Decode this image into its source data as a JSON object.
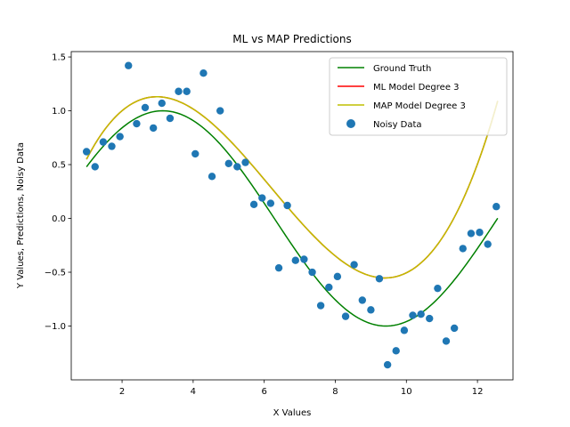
{
  "chart_data": {
    "type": "scatter",
    "title": "ML vs MAP Predictions",
    "xlabel": "X Values",
    "ylabel": "Y Values, Predictions, Noisy Data",
    "xlim": [
      0.57,
      13.0
    ],
    "ylim": [
      -1.5,
      1.55
    ],
    "xticks": [
      2,
      4,
      6,
      8,
      10,
      12
    ],
    "yticks": [
      -1.0,
      -0.5,
      0.0,
      0.5,
      1.0,
      1.5
    ],
    "legend_position": "top-right",
    "series": [
      {
        "name": "Ground Truth",
        "kind": "line",
        "color": "#008000",
        "function": "sin(x/2)",
        "x_range": [
          1,
          12.57
        ]
      },
      {
        "name": "ML Model Degree 3",
        "kind": "line",
        "color": "#ff0000",
        "coefficients": [
          -0.2975,
          1.0716,
          -0.2368,
          0.012756
        ],
        "x_range": [
          1,
          12.57
        ]
      },
      {
        "name": "MAP Model Degree 3",
        "kind": "line",
        "color": "#bfbf00",
        "coefficients": [
          -0.2975,
          1.0716,
          -0.2368,
          0.012756
        ],
        "x_range": [
          1,
          12.57
        ]
      },
      {
        "name": "Noisy Data",
        "kind": "scatter",
        "color": "#1f77b4",
        "points": [
          [
            1.0,
            0.62
          ],
          [
            1.24,
            0.48
          ],
          [
            1.47,
            0.71
          ],
          [
            1.71,
            0.67
          ],
          [
            1.94,
            0.76
          ],
          [
            2.18,
            1.42
          ],
          [
            2.41,
            0.88
          ],
          [
            2.65,
            1.03
          ],
          [
            2.88,
            0.84
          ],
          [
            3.12,
            1.07
          ],
          [
            3.35,
            0.93
          ],
          [
            3.59,
            1.18
          ],
          [
            3.82,
            1.18
          ],
          [
            4.06,
            0.6
          ],
          [
            4.29,
            1.35
          ],
          [
            4.53,
            0.39
          ],
          [
            4.76,
            1.0
          ],
          [
            5.0,
            0.51
          ],
          [
            5.24,
            0.48
          ],
          [
            5.47,
            0.52
          ],
          [
            5.71,
            0.13
          ],
          [
            5.94,
            0.19
          ],
          [
            6.18,
            0.14
          ],
          [
            6.41,
            -0.46
          ],
          [
            6.65,
            0.12
          ],
          [
            6.88,
            -0.39
          ],
          [
            7.12,
            -0.38
          ],
          [
            7.35,
            -0.5
          ],
          [
            7.59,
            -0.81
          ],
          [
            7.82,
            -0.64
          ],
          [
            8.06,
            -0.54
          ],
          [
            8.29,
            -0.91
          ],
          [
            8.53,
            -0.43
          ],
          [
            8.76,
            -0.76
          ],
          [
            9.0,
            -0.85
          ],
          [
            9.24,
            -0.56
          ],
          [
            9.47,
            -1.36
          ],
          [
            9.71,
            -1.23
          ],
          [
            9.94,
            -1.04
          ],
          [
            10.18,
            -0.9
          ],
          [
            10.41,
            -0.89
          ],
          [
            10.65,
            -0.93
          ],
          [
            10.88,
            -0.65
          ],
          [
            11.12,
            -1.14
          ],
          [
            11.35,
            -1.02
          ],
          [
            11.59,
            -0.28
          ],
          [
            11.82,
            -0.14
          ],
          [
            12.06,
            -0.13
          ],
          [
            12.29,
            -0.24
          ],
          [
            12.53,
            0.11
          ]
        ]
      }
    ]
  }
}
